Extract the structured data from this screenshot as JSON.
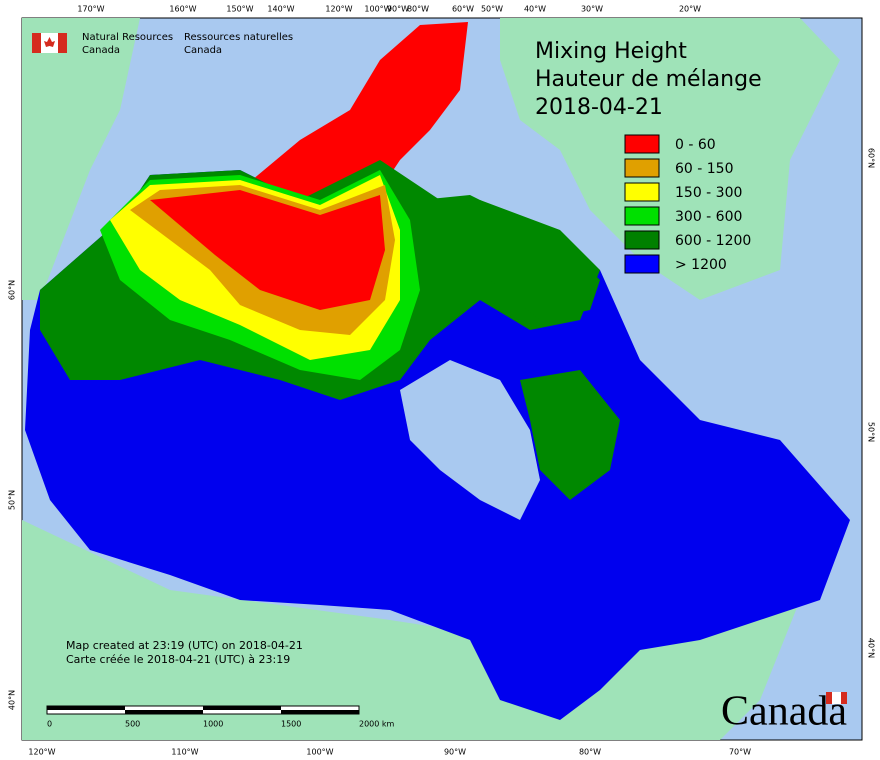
{
  "header": {
    "agency_en": [
      "Natural Resources",
      "Canada"
    ],
    "agency_fr": [
      "Ressources naturelles",
      "Canada"
    ]
  },
  "title": [
    "Mixing Height",
    "Hauteur de mélange",
    "2018-04-21"
  ],
  "legend": [
    {
      "label": "0 - 60",
      "color": "#ff0000"
    },
    {
      "label": "60 - 150",
      "color": "#e0a000"
    },
    {
      "label": "150 - 300",
      "color": "#ffff00"
    },
    {
      "label": "300 - 600",
      "color": "#00e000"
    },
    {
      "label": "600 - 1200",
      "color": "#008000"
    },
    {
      "label": "> 1200",
      "color": "#0000ff"
    }
  ],
  "graticule": {
    "top": [
      "170°W",
      "160°W",
      "150°W",
      "140°W",
      "120°W",
      "100°W",
      "90°W",
      "80°W",
      "60°W",
      "50°W",
      "40°W",
      "30°W",
      "20°W"
    ],
    "bottom": [
      "120°W",
      "110°W",
      "100°W",
      "90°W",
      "80°W",
      "70°W"
    ],
    "left": [
      "60°N",
      "50°N",
      "40°N"
    ],
    "right": [
      "60°N",
      "50°N",
      "40°N"
    ]
  },
  "notes": [
    "Map created at 23:19 (UTC) on 2018-04-21",
    "Carte créée le 2018-04-21 (UTC) à 23:19"
  ],
  "scale": [
    "0",
    "500",
    "1000",
    "1500",
    "2000  km"
  ],
  "wordmark": "Canada"
}
